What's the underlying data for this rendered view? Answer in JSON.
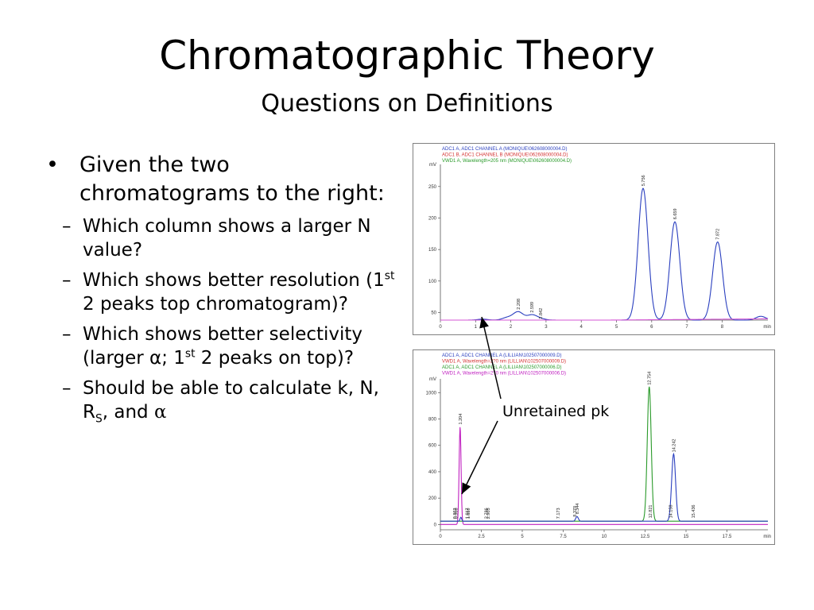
{
  "slide": {
    "title": "Chromatographic Theory",
    "subtitle": "Questions on Definitions",
    "bullet_main": "Given the two chromatograms to the right:",
    "q1": "Which column shows a larger N value?",
    "q2_a": "Which shows better resolution (1",
    "q2_sup": "st",
    "q2_b": " 2 peaks top chromatogram)?",
    "q3_a": "Which shows better selectivity (larger α; 1",
    "q3_sup": "st",
    "q3_b": " 2 peaks on top)?",
    "q4_a": "Should be able to calculate k, N, R",
    "q4_sub": "S",
    "q4_b": ", and ",
    "q4_alpha": "α",
    "callout": "Unretained pk"
  },
  "chart_data": [
    {
      "type": "line",
      "legend": [
        {
          "text": "ADC1 A, ADC1 CHANNEL A (MONIQUE\\062608000004.D)",
          "color": "#2a3fbf"
        },
        {
          "text": "ADC1 B, ADC1 CHANNEL B (MONIQUE\\062608000004.D)",
          "color": "#d43333"
        },
        {
          "text": "VWD1 A, Wavelength=205 nm (MONIQUE\\062608000004.D)",
          "color": "#2a9a2a"
        }
      ],
      "ylabel": "mV",
      "xunit": "min",
      "xlim": [
        0,
        9.3
      ],
      "ylim": [
        38,
        280
      ],
      "xticks": [
        0,
        1,
        2,
        3,
        4,
        5,
        6,
        7,
        8
      ],
      "yticks": [
        50,
        100,
        150,
        200,
        250
      ],
      "baseline": 38,
      "series": [
        {
          "color": "#2a3fbf",
          "peaks": [
            {
              "rt": 1.2,
              "height": 1.5
            },
            {
              "rt": 1.9,
              "height": 4
            },
            {
              "rt": 2.208,
              "height": 13
            },
            {
              "rt": 2.599,
              "height": 8
            },
            {
              "rt": 2.842,
              "height": 2
            },
            {
              "rt": 5.756,
              "height": 209
            },
            {
              "rt": 6.659,
              "height": 156
            },
            {
              "rt": 7.872,
              "height": 124
            },
            {
              "rt": 9.1,
              "height": 6
            }
          ]
        },
        {
          "color": "#d454d4",
          "peaks": [],
          "drift": [
            [
              4.8,
              0
            ],
            [
              9.3,
              2
            ]
          ]
        }
      ],
      "peak_labels": [
        {
          "text": "2.208",
          "rt": 2.208,
          "height": 13
        },
        {
          "text": "2.599",
          "rt": 2.599,
          "height": 8
        },
        {
          "text": "2.842",
          "rt": 2.842,
          "height": -2
        },
        {
          "text": "5.756",
          "rt": 5.756,
          "height": 209
        },
        {
          "text": "6.659",
          "rt": 6.659,
          "height": 156
        },
        {
          "text": "7.872",
          "rt": 7.872,
          "height": 124
        }
      ]
    },
    {
      "type": "line",
      "legend": [
        {
          "text": "ADC1 A, ADC1 CHANNEL A (LILLIAN\\102507000009.D)",
          "color": "#2a3fbf"
        },
        {
          "text": "VWD1 A, Wavelength=2?0 nm (LILLIAN\\102507000009.D)",
          "color": "#d43333"
        },
        {
          "text": "ADC1 A, ADC1 CHANNEL A (LILLIAN\\102507000006.D)",
          "color": "#2a9a2a"
        },
        {
          "text": "VWD1 A, Wavelength=2?0 nm (LILLIAN\\102507000006.D)",
          "color": "#c020c0"
        }
      ],
      "ylabel": "mV",
      "xunit": "min",
      "xlim": [
        0,
        20
      ],
      "ylim": [
        -40,
        1080
      ],
      "xticks": [
        0,
        2.5,
        5,
        7.5,
        10,
        12.5,
        15,
        17.5
      ],
      "xtick_labels": [
        "0",
        "2.5",
        "5",
        "7.5",
        "10",
        "12.5",
        "15",
        "17.5"
      ],
      "yticks": [
        0,
        200,
        400,
        600,
        800,
        1000
      ],
      "series": [
        {
          "color": "#c020c0",
          "baseline": 0,
          "peaks": [
            {
              "rt": 1.204,
              "height": 740,
              "width": 0.06
            }
          ]
        },
        {
          "color": "#2a9a2a",
          "baseline": 25,
          "peaks": [
            {
              "rt": 12.754,
              "height": 1020,
              "width": 0.12
            }
          ]
        },
        {
          "color": "#2a3fbf",
          "baseline": 25,
          "peaks": [
            {
              "rt": 1.25,
              "height": 30,
              "width": 0.05
            },
            {
              "rt": 8.344,
              "height": 35,
              "width": 0.08
            },
            {
              "rt": 14.242,
              "height": 510,
              "width": 0.12
            }
          ]
        }
      ],
      "peak_labels": [
        {
          "text": "1.204",
          "rt": 1.204,
          "height": 740
        },
        {
          "text": "0.863",
          "rt": 0.863,
          "height": 25
        },
        {
          "text": "0.908",
          "rt": 0.94,
          "height": 25
        },
        {
          "text": "1.617",
          "rt": 1.617,
          "height": 25
        },
        {
          "text": "1.659",
          "rt": 1.7,
          "height": 25
        },
        {
          "text": "2.786",
          "rt": 2.786,
          "height": 25
        },
        {
          "text": "2.905",
          "rt": 2.905,
          "height": 25
        },
        {
          "text": "7.173",
          "rt": 7.173,
          "height": 25
        },
        {
          "text": "8.344",
          "rt": 8.344,
          "height": 60
        },
        {
          "text": "8.379",
          "rt": 8.2,
          "height": 40
        },
        {
          "text": "12.754",
          "rt": 12.754,
          "height": 1040
        },
        {
          "text": "12.821",
          "rt": 12.821,
          "height": 30
        },
        {
          "text": "14.242",
          "rt": 14.242,
          "height": 530
        },
        {
          "text": "14.158",
          "rt": 14.05,
          "height": 30
        },
        {
          "text": "15.436",
          "rt": 15.436,
          "height": 30
        }
      ]
    }
  ]
}
